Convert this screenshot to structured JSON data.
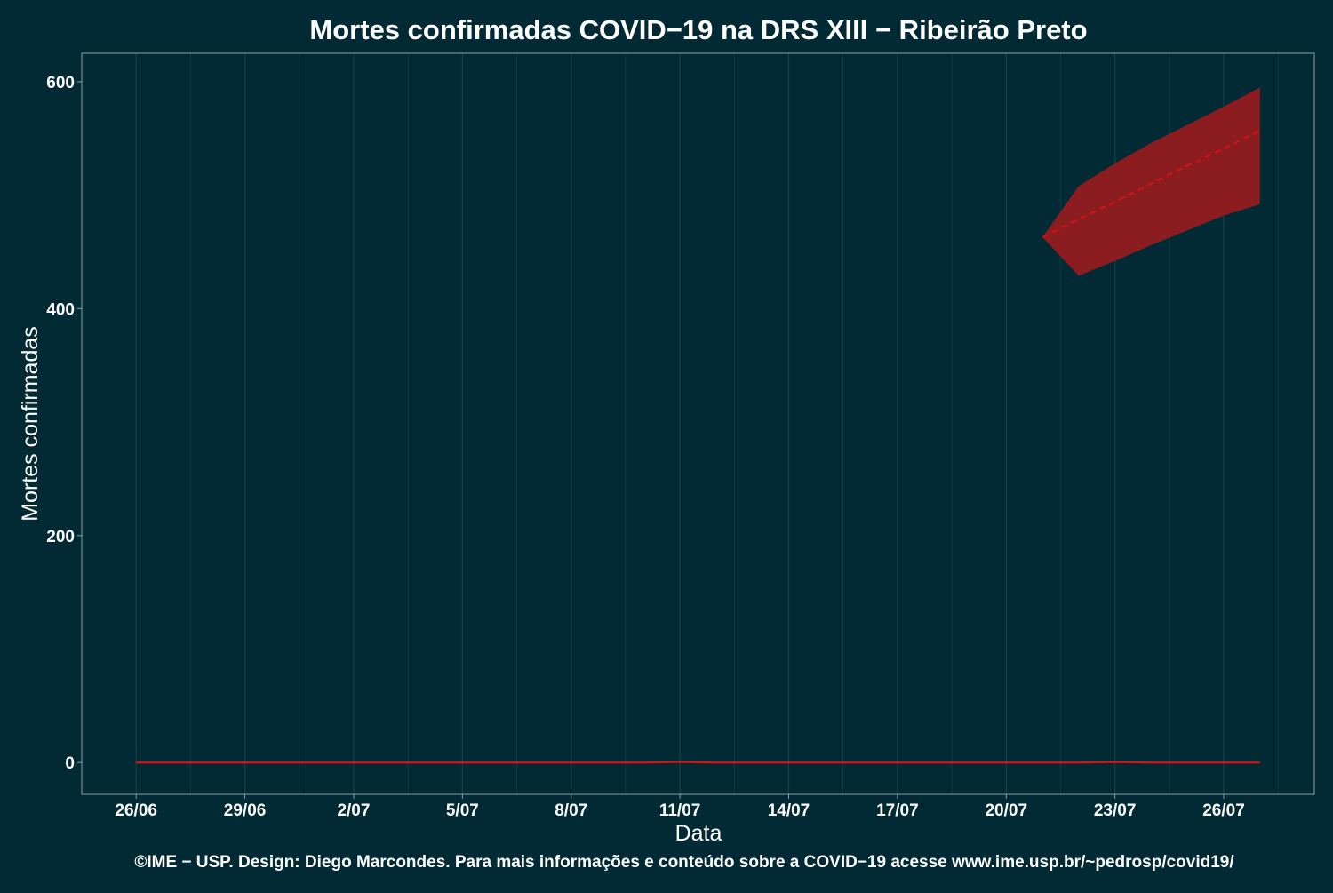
{
  "colors": {
    "background": "#022a35",
    "grid": "#1a3f49",
    "axis_frame": "#8aa0a6",
    "line": "#e01010",
    "band": "#8b1c1f",
    "text": "#ffffff"
  },
  "chart_data": {
    "type": "line",
    "title": "Mortes confirmadas COVID−19 na DRS XIII − Ribeirão Preto",
    "xlabel": "Data",
    "ylabel": "Mortes confirmadas",
    "caption": "©IME − USP. Design: Diego Marcondes. Para mais informações e conteúdo sobre a COVID−19 acesse www.ime.usp.br/~pedrosp/covid19/",
    "grid": true,
    "legend": "none",
    "x_ticks": [
      "26/06",
      "29/06",
      "2/07",
      "5/07",
      "8/07",
      "11/07",
      "14/07",
      "17/07",
      "20/07",
      "23/07",
      "26/07"
    ],
    "x_tick_days": [
      0,
      3,
      6,
      9,
      12,
      15,
      18,
      21,
      24,
      27,
      30
    ],
    "xlim_days": [
      -1.5,
      32.5
    ],
    "y_ticks": [
      0,
      200,
      400,
      600
    ],
    "ylim": [
      -28,
      625
    ],
    "series": [
      {
        "style": "solid",
        "x_days": [
          0,
          2,
          4,
          6,
          8,
          10,
          12,
          14,
          15,
          16,
          18,
          20,
          22,
          24,
          26,
          27,
          28,
          30,
          31
        ],
        "values": [
          0,
          0,
          0,
          0,
          0,
          0,
          0,
          0,
          0.5,
          0,
          0,
          0,
          0,
          0,
          0,
          0.5,
          0,
          0,
          0
        ]
      },
      {
        "style": "dashed",
        "x_days": [
          25,
          26,
          27,
          28,
          29,
          30,
          31
        ],
        "values": [
          463,
          479,
          494,
          510,
          526,
          541,
          557
        ]
      }
    ],
    "band": {
      "x_days": [
        25,
        26,
        27,
        28,
        29,
        30,
        31
      ],
      "lower": [
        463,
        429,
        442,
        456,
        469,
        482,
        492
      ],
      "upper": [
        463,
        508,
        528,
        546,
        562,
        578,
        595
      ]
    }
  }
}
